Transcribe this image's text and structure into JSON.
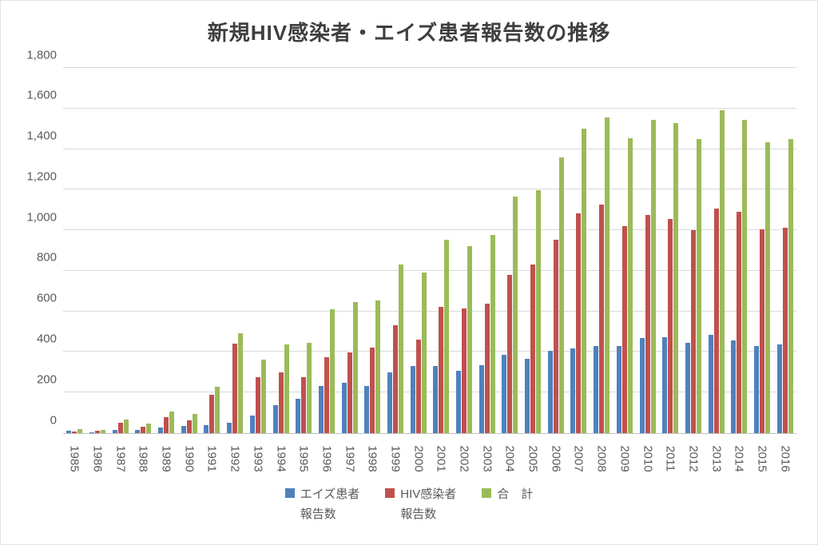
{
  "chart_data": {
    "type": "bar",
    "title": "新規HIV感染者・エイズ患者報告数の推移",
    "xlabel": "",
    "ylabel": "",
    "ylim": [
      0,
      1800
    ],
    "grid": true,
    "legend_position": "bottom",
    "y_ticks": [
      {
        "v": 0,
        "label": "0"
      },
      {
        "v": 200,
        "label": "200"
      },
      {
        "v": 400,
        "label": "400"
      },
      {
        "v": 600,
        "label": "600"
      },
      {
        "v": 800,
        "label": "800"
      },
      {
        "v": 1000,
        "label": "1,000"
      },
      {
        "v": 1200,
        "label": "1,200"
      },
      {
        "v": 1400,
        "label": "1,400"
      },
      {
        "v": 1600,
        "label": "1,600"
      },
      {
        "v": 1800,
        "label": "1,800"
      }
    ],
    "categories": [
      "1985",
      "1986",
      "1987",
      "1988",
      "1989",
      "1990",
      "1991",
      "1992",
      "1993",
      "1994",
      "1995",
      "1996",
      "1997",
      "1998",
      "1999",
      "2000",
      "2001",
      "2002",
      "2003",
      "2004",
      "2005",
      "2006",
      "2007",
      "2008",
      "2009",
      "2010",
      "2011",
      "2012",
      "2013",
      "2014",
      "2015",
      "2016"
    ],
    "series": [
      {
        "name": "エイズ患者報告数",
        "color": "#4f81bd",
        "values": [
          12,
          3,
          14,
          16,
          26,
          34,
          38,
          52,
          87,
          136,
          169,
          233,
          250,
          231,
          300,
          329,
          332,
          308,
          336,
          385,
          367,
          406,
          418,
          431,
          431,
          469,
          473,
          447,
          484,
          455,
          428,
          437
        ]
      },
      {
        "name": "HIV感染者報告数",
        "color": "#c0504d",
        "values": [
          6,
          11,
          53,
          32,
          79,
          62,
          190,
          440,
          277,
          300,
          277,
          376,
          397,
          422,
          530,
          462,
          621,
          614,
          640,
          780,
          832,
          952,
          1082,
          1126,
          1021,
          1075,
          1056,
          1002,
          1106,
          1091,
          1006,
          1011
        ]
      },
      {
        "name": "合　計",
        "color": "#9bbb59",
        "values": [
          18,
          14,
          67,
          48,
          105,
          96,
          228,
          492,
          364,
          436,
          446,
          609,
          647,
          653,
          830,
          791,
          953,
          922,
          976,
          1165,
          1199,
          1358,
          1500,
          1557,
          1452,
          1544,
          1529,
          1449,
          1590,
          1546,
          1434,
          1448
        ]
      }
    ]
  },
  "legend": [
    {
      "line1": "エイズ患者",
      "line2": "報告数"
    },
    {
      "line1": "HIV感染者",
      "line2": "報告数"
    },
    {
      "line1": "合　計",
      "line2": ""
    }
  ]
}
